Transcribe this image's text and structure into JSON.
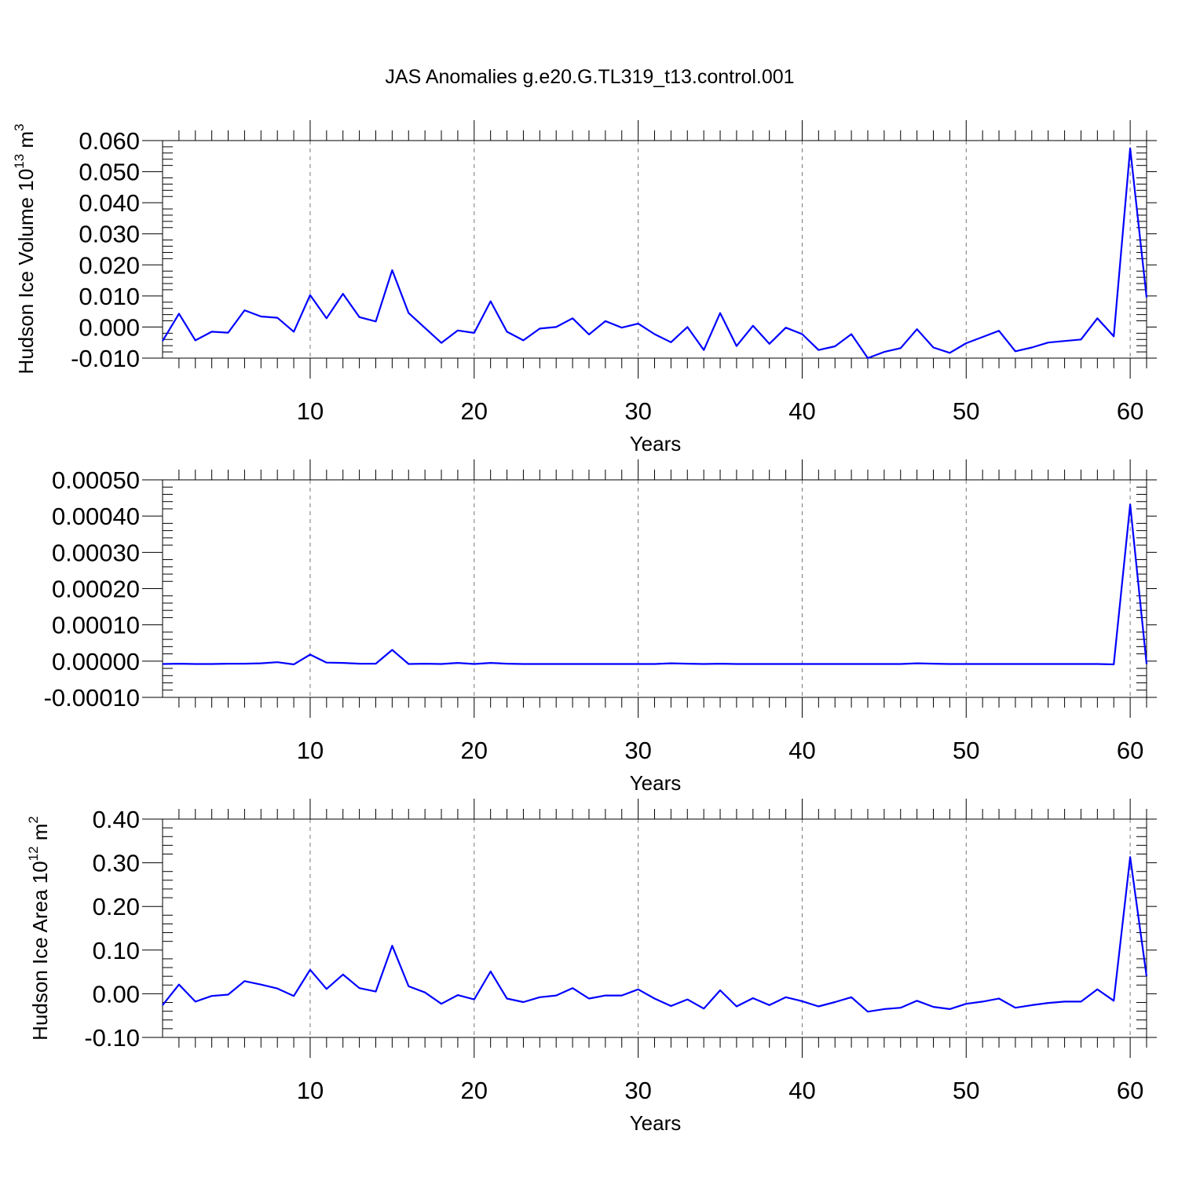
{
  "figure": {
    "title": "JAS Anomalies g.e20.G.TL319_t13.control.001"
  },
  "chart_data": [
    {
      "type": "line",
      "xlabel": "Years",
      "ylabel": {
        "text": "Hudson Ice Volume 10",
        "exp": "13",
        "unit": " m",
        "unit_exp": "3"
      },
      "xlim": [
        1,
        61
      ],
      "ylim": [
        -0.01,
        0.06
      ],
      "xticks": [
        10,
        20,
        30,
        40,
        50,
        60
      ],
      "yticks": [
        -0.01,
        0.0,
        0.01,
        0.02,
        0.03,
        0.04,
        0.05,
        0.06
      ],
      "ytick_labels": [
        "-0.010",
        "0.000",
        "0.010",
        "0.020",
        "0.030",
        "0.040",
        "0.050",
        "0.060"
      ],
      "grid": "vertical-dashed",
      "color": "#0000ff",
      "x": [
        1,
        2,
        3,
        4,
        5,
        6,
        7,
        8,
        9,
        10,
        11,
        12,
        13,
        14,
        15,
        16,
        17,
        18,
        19,
        20,
        21,
        22,
        23,
        24,
        25,
        26,
        27,
        28,
        29,
        30,
        31,
        32,
        33,
        34,
        35,
        36,
        37,
        38,
        39,
        40,
        41,
        42,
        43,
        44,
        45,
        46,
        47,
        48,
        49,
        50,
        51,
        52,
        53,
        54,
        55,
        56,
        57,
        58,
        59,
        60,
        61
      ],
      "y": [
        -0.0045,
        0.0043,
        -0.0043,
        -0.0015,
        -0.0018,
        0.0054,
        0.0034,
        0.003,
        -0.0015,
        0.0103,
        0.0028,
        0.0107,
        0.0032,
        0.0018,
        0.0183,
        0.0045,
        -0.0003,
        -0.0051,
        -0.0011,
        -0.0019,
        0.0083,
        -0.0015,
        -0.0043,
        -0.0005,
        0.0,
        0.0028,
        -0.0024,
        0.0019,
        -0.0002,
        0.0011,
        -0.0023,
        -0.0049,
        0.0,
        -0.0074,
        0.0045,
        -0.0061,
        0.0004,
        -0.0054,
        -0.0002,
        -0.0023,
        -0.0074,
        -0.0062,
        -0.0023,
        -0.01,
        -0.008,
        -0.0068,
        -0.0007,
        -0.0066,
        -0.0083,
        -0.0052,
        -0.0032,
        -0.0012,
        -0.0078,
        -0.0066,
        -0.005,
        -0.0045,
        -0.004,
        0.0028,
        -0.003,
        0.0575,
        0.0095
      ]
    },
    {
      "type": "line",
      "xlabel": "Years",
      "xlim": [
        1,
        61
      ],
      "ylim": [
        -0.0001,
        0.0005
      ],
      "xticks": [
        10,
        20,
        30,
        40,
        50,
        60
      ],
      "yticks": [
        -0.0001,
        0.0,
        0.0001,
        0.0002,
        0.0003,
        0.0004,
        0.0005
      ],
      "ytick_labels": [
        "-0.00010",
        "0.00000",
        "0.00010",
        "0.00020",
        "0.00030",
        "0.00040",
        "0.00050"
      ],
      "grid": "vertical-dashed",
      "color": "#0000ff",
      "x": [
        1,
        2,
        3,
        4,
        5,
        6,
        7,
        8,
        9,
        10,
        11,
        12,
        13,
        14,
        15,
        16,
        17,
        18,
        19,
        20,
        21,
        22,
        23,
        24,
        25,
        26,
        27,
        28,
        29,
        30,
        31,
        32,
        33,
        34,
        35,
        36,
        37,
        38,
        39,
        40,
        41,
        42,
        43,
        44,
        45,
        46,
        47,
        48,
        49,
        50,
        51,
        52,
        53,
        54,
        55,
        56,
        57,
        58,
        59,
        60,
        61
      ],
      "y": [
        -8e-06,
        -7e-06,
        -8e-06,
        -8e-06,
        -7e-06,
        -7e-06,
        -6e-06,
        -3e-06,
        -9e-06,
        1.8e-05,
        -4e-06,
        -5e-06,
        -7e-06,
        -7e-06,
        3.1e-05,
        -8e-06,
        -7e-06,
        -8e-06,
        -5e-06,
        -8e-06,
        -5e-06,
        -7e-06,
        -8e-06,
        -8e-06,
        -8e-06,
        -8e-06,
        -8e-06,
        -8e-06,
        -8e-06,
        -8e-06,
        -8e-06,
        -6e-06,
        -7e-06,
        -8e-06,
        -7e-06,
        -8e-06,
        -8e-06,
        -8e-06,
        -8e-06,
        -8e-06,
        -8e-06,
        -8e-06,
        -8e-06,
        -8e-06,
        -8e-06,
        -8e-06,
        -6e-06,
        -7e-06,
        -8e-06,
        -8e-06,
        -8e-06,
        -8e-06,
        -8e-06,
        -8e-06,
        -8e-06,
        -8e-06,
        -8e-06,
        -8e-06,
        -9e-06,
        0.000432,
        -8e-06
      ]
    },
    {
      "type": "line",
      "xlabel": "Years",
      "ylabel": {
        "text": "Hudson Ice Area 10",
        "exp": "12",
        "unit": " m",
        "unit_exp": "2"
      },
      "xlim": [
        1,
        61
      ],
      "ylim": [
        -0.1,
        0.4
      ],
      "xticks": [
        10,
        20,
        30,
        40,
        50,
        60
      ],
      "yticks": [
        -0.1,
        0.0,
        0.1,
        0.2,
        0.3,
        0.4
      ],
      "ytick_labels": [
        "-0.10",
        "0.00",
        "0.10",
        "0.20",
        "0.30",
        "0.40"
      ],
      "grid": "vertical-dashed",
      "color": "#0000ff",
      "x": [
        1,
        2,
        3,
        4,
        5,
        6,
        7,
        8,
        9,
        10,
        11,
        12,
        13,
        14,
        15,
        16,
        17,
        18,
        19,
        20,
        21,
        22,
        23,
        24,
        25,
        26,
        27,
        28,
        29,
        30,
        31,
        32,
        33,
        34,
        35,
        36,
        37,
        38,
        39,
        40,
        41,
        42,
        43,
        44,
        45,
        46,
        47,
        48,
        49,
        50,
        51,
        52,
        53,
        54,
        55,
        56,
        57,
        58,
        59,
        60,
        61
      ],
      "y": [
        -0.026,
        0.021,
        -0.018,
        -0.005,
        -0.002,
        0.029,
        0.021,
        0.012,
        -0.005,
        0.055,
        0.011,
        0.044,
        0.013,
        0.005,
        0.11,
        0.017,
        0.003,
        -0.023,
        -0.003,
        -0.013,
        0.051,
        -0.011,
        -0.019,
        -0.008,
        -0.004,
        0.013,
        -0.011,
        -0.004,
        -0.004,
        0.01,
        -0.011,
        -0.028,
        -0.013,
        -0.034,
        0.008,
        -0.029,
        -0.01,
        -0.026,
        -0.008,
        -0.017,
        -0.029,
        -0.019,
        -0.008,
        -0.041,
        -0.035,
        -0.032,
        -0.016,
        -0.03,
        -0.035,
        -0.023,
        -0.018,
        -0.011,
        -0.032,
        -0.026,
        -0.021,
        -0.018,
        -0.018,
        0.01,
        -0.016,
        0.313,
        0.04
      ]
    }
  ]
}
